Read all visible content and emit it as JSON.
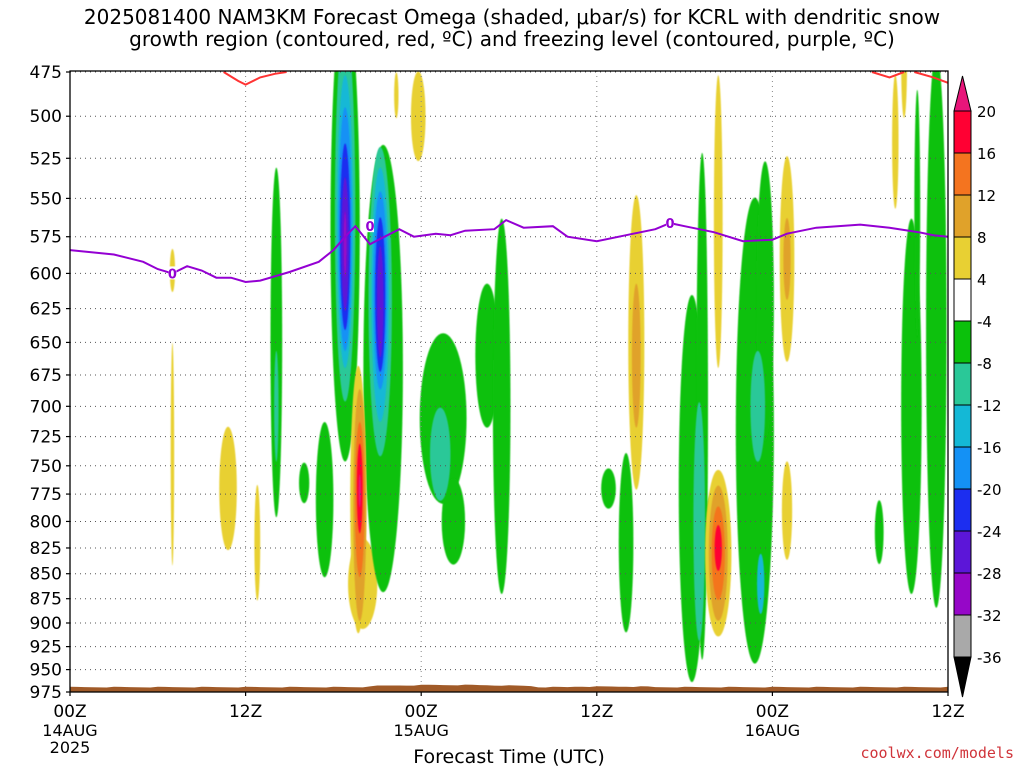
{
  "title_line1": "2025081400 NAM3KM Forecast Omega (shaded, μbar/s) for KCRL with dendritic snow",
  "title_line2": "growth region (contoured, red, ºC) and freezing level (contoured, purple, ºC)",
  "watermark": "coolwx.com/models",
  "chart_data": {
    "type": "heatmap",
    "xlabel": "Forecast Time (UTC)",
    "ylabel": "",
    "x_ticks": [
      {
        "h": 0,
        "label": "00Z",
        "sub": [
          "14AUG",
          "2025"
        ]
      },
      {
        "h": 12,
        "label": "12Z",
        "sub": []
      },
      {
        "h": 24,
        "label": "00Z",
        "sub": [
          "15AUG"
        ]
      },
      {
        "h": 36,
        "label": "12Z",
        "sub": []
      },
      {
        "h": 48,
        "label": "00Z",
        "sub": [
          "16AUG"
        ]
      },
      {
        "h": 60,
        "label": "12Z",
        "sub": []
      }
    ],
    "xlim": [
      0,
      60
    ],
    "y_ticks": [
      475,
      500,
      525,
      550,
      575,
      600,
      625,
      650,
      675,
      700,
      725,
      750,
      775,
      800,
      825,
      850,
      875,
      900,
      925,
      950,
      975
    ],
    "ylim": [
      475,
      975
    ],
    "y_scale": "log-pressure",
    "colorbar": {
      "labels": [
        "20",
        "16",
        "12",
        "8",
        "4",
        "-4",
        "-8",
        "-12",
        "-16",
        "-20",
        "-24",
        "-28",
        "-32",
        "-36"
      ],
      "colors": [
        "#ff0033",
        "#f4741f",
        "#e0a22a",
        "#e8d033",
        "#ffffff",
        "#0bc10b",
        "#2ac898",
        "#14b8d6",
        "#1491f5",
        "#1c2ef0",
        "#5c16d8",
        "#9607c8",
        "#a9a9a9",
        "#000000"
      ],
      "top_color": "#e8157a"
    },
    "freezing_level": {
      "label": "0",
      "color": "#9400d3",
      "points": [
        [
          0,
          584
        ],
        [
          3,
          587
        ],
        [
          5,
          592
        ],
        [
          6,
          597
        ],
        [
          7,
          600
        ],
        [
          8,
          595
        ],
        [
          9,
          598
        ],
        [
          10,
          603
        ],
        [
          11,
          603
        ],
        [
          12,
          606
        ],
        [
          13,
          605
        ],
        [
          15,
          599
        ],
        [
          17,
          592
        ],
        [
          18,
          584
        ],
        [
          19,
          573
        ],
        [
          19.5,
          568
        ],
        [
          20.5,
          580
        ],
        [
          21.5,
          575
        ],
        [
          22.5,
          570
        ],
        [
          23.5,
          575
        ],
        [
          25,
          573
        ],
        [
          26,
          574
        ],
        [
          27,
          571
        ],
        [
          29,
          570
        ],
        [
          29.8,
          564
        ],
        [
          31,
          569
        ],
        [
          33,
          568
        ],
        [
          34,
          575
        ],
        [
          36,
          578
        ],
        [
          38,
          574
        ],
        [
          40,
          570
        ],
        [
          41,
          566
        ],
        [
          42,
          568
        ],
        [
          44,
          572
        ],
        [
          46,
          578
        ],
        [
          48,
          577
        ],
        [
          49,
          573
        ],
        [
          51,
          569
        ],
        [
          54,
          567
        ],
        [
          56,
          569
        ],
        [
          58,
          572
        ],
        [
          59,
          574
        ],
        [
          60,
          575
        ]
      ],
      "labels_at": [
        [
          7,
          600
        ],
        [
          20.5,
          568
        ],
        [
          41,
          566
        ]
      ]
    },
    "dendritic_contour": {
      "color": "#ff3333",
      "segments": [
        [
          [
            10.5,
            475
          ],
          [
            11.5,
            480
          ],
          [
            12,
            482
          ],
          [
            13,
            478
          ],
          [
            14,
            476
          ],
          [
            14.8,
            475
          ]
        ],
        [
          [
            54.8,
            475
          ],
          [
            56,
            478
          ],
          [
            57,
            475
          ]
        ],
        [
          [
            57.7,
            475
          ],
          [
            59,
            478
          ],
          [
            60,
            481
          ]
        ]
      ]
    },
    "ground_fill": {
      "color": "#a05a28",
      "base_level": 975
    },
    "omega_regions": [
      {
        "value": 6,
        "h": 7.0,
        "p": 598,
        "rh": 0.18,
        "rp": 15
      },
      {
        "value": 6,
        "h": 7.0,
        "p": 740,
        "rh": 0.12,
        "rp": 95
      },
      {
        "value": 6,
        "h": 10.8,
        "p": 770,
        "rh": 0.6,
        "rp": 55
      },
      {
        "value": 6,
        "h": 12.8,
        "p": 820,
        "rh": 0.2,
        "rp": 55
      },
      {
        "value": 6,
        "h": 23.8,
        "p": 500,
        "rh": 0.5,
        "rp": 26
      },
      {
        "value": 6,
        "h": 22.3,
        "p": 488,
        "rh": 0.15,
        "rp": 13
      },
      {
        "value": 6,
        "h": 38.7,
        "p": 650,
        "rh": 0.55,
        "rp": 110
      },
      {
        "value": 6,
        "h": 44.3,
        "p": 565,
        "rh": 0.3,
        "rp": 95
      },
      {
        "value": 6,
        "h": 49.0,
        "p": 590,
        "rh": 0.5,
        "rp": 70
      },
      {
        "value": 6,
        "h": 49.0,
        "p": 790,
        "rh": 0.35,
        "rp": 45
      },
      {
        "value": 6,
        "h": 56.4,
        "p": 515,
        "rh": 0.22,
        "rp": 40
      },
      {
        "value": 6,
        "h": 57.0,
        "p": 470,
        "rh": 0.2,
        "rp": 30
      },
      {
        "value": 6,
        "h": 20.0,
        "p": 860,
        "rh": 1.0,
        "rp": 45
      },
      {
        "value": 10,
        "h": 38.7,
        "p": 660,
        "rh": 0.3,
        "rp": 55
      },
      {
        "value": 10,
        "h": 49.0,
        "p": 590,
        "rh": 0.25,
        "rp": 28
      },
      {
        "value": -6,
        "h": 14.1,
        "p": 650,
        "rh": 0.4,
        "rp": 130
      },
      {
        "value": -6,
        "h": 18.8,
        "p": 570,
        "rh": 1.0,
        "rp": 150
      },
      {
        "value": -6,
        "h": 21.4,
        "p": 670,
        "rh": 1.35,
        "rp": 170
      },
      {
        "value": -6,
        "h": 17.4,
        "p": 780,
        "rh": 0.6,
        "rp": 70
      },
      {
        "value": -6,
        "h": 16.0,
        "p": 765,
        "rh": 0.35,
        "rp": 18
      },
      {
        "value": -6,
        "h": 25.5,
        "p": 710,
        "rh": 1.6,
        "rp": 70
      },
      {
        "value": -6,
        "h": 28.5,
        "p": 660,
        "rh": 0.8,
        "rp": 55
      },
      {
        "value": -6,
        "h": 29.5,
        "p": 700,
        "rh": 0.6,
        "rp": 150
      },
      {
        "value": -6,
        "h": 26.2,
        "p": 800,
        "rh": 0.8,
        "rp": 40
      },
      {
        "value": -6,
        "h": 38.0,
        "p": 820,
        "rh": 0.5,
        "rp": 85
      },
      {
        "value": -6,
        "h": 36.8,
        "p": 770,
        "rh": 0.5,
        "rp": 18
      },
      {
        "value": -6,
        "h": 42.5,
        "p": 770,
        "rh": 0.9,
        "rp": 170
      },
      {
        "value": -6,
        "h": 43.2,
        "p": 700,
        "rh": 0.4,
        "rp": 200
      },
      {
        "value": -6,
        "h": 46.8,
        "p": 720,
        "rh": 1.3,
        "rp": 190
      },
      {
        "value": -6,
        "h": 47.5,
        "p": 620,
        "rh": 0.6,
        "rp": 100
      },
      {
        "value": -6,
        "h": 44.0,
        "p": 810,
        "rh": 0.6,
        "rp": 40
      },
      {
        "value": -6,
        "h": 57.5,
        "p": 700,
        "rh": 0.7,
        "rp": 150
      },
      {
        "value": -6,
        "h": 59.2,
        "p": 640,
        "rh": 0.7,
        "rp": 200
      },
      {
        "value": -6,
        "h": 55.3,
        "p": 810,
        "rh": 0.3,
        "rp": 30
      },
      {
        "value": -6,
        "h": 57.9,
        "p": 560,
        "rh": 0.2,
        "rp": 80
      },
      {
        "value": -10,
        "h": 25.3,
        "p": 740,
        "rh": 0.7,
        "rp": 40
      },
      {
        "value": -10,
        "h": 43.0,
        "p": 800,
        "rh": 0.4,
        "rp": 110
      },
      {
        "value": -10,
        "h": 47.0,
        "p": 700,
        "rh": 0.5,
        "rp": 45
      },
      {
        "value": -10,
        "h": 18.8,
        "p": 560,
        "rh": 0.7,
        "rp": 120
      },
      {
        "value": -10,
        "h": 21.2,
        "p": 620,
        "rh": 0.8,
        "rp": 110
      },
      {
        "value": -10,
        "h": 14.1,
        "p": 700,
        "rh": 0.15,
        "rp": 45
      },
      {
        "value": -14,
        "h": 18.8,
        "p": 565,
        "rh": 0.55,
        "rp": 95
      },
      {
        "value": -14,
        "h": 21.2,
        "p": 615,
        "rh": 0.6,
        "rp": 90
      },
      {
        "value": -14,
        "h": 47.2,
        "p": 860,
        "rh": 0.25,
        "rp": 30
      },
      {
        "value": -18,
        "h": 18.8,
        "p": 570,
        "rh": 0.45,
        "rp": 80
      },
      {
        "value": -18,
        "h": 21.2,
        "p": 612,
        "rh": 0.48,
        "rp": 70
      },
      {
        "value": -22,
        "h": 18.8,
        "p": 575,
        "rh": 0.35,
        "rp": 62
      },
      {
        "value": -22,
        "h": 21.2,
        "p": 615,
        "rh": 0.35,
        "rp": 55
      },
      {
        "value": -26,
        "h": 18.8,
        "p": 580,
        "rh": 0.25,
        "rp": 45
      },
      {
        "value": -26,
        "h": 21.2,
        "p": 620,
        "rh": 0.22,
        "rp": 40
      },
      {
        "value": -30,
        "h": 18.8,
        "p": 580,
        "rh": 0.1,
        "rp": 22
      },
      {
        "value": 6,
        "h": 19.7,
        "p": 780,
        "rh": 0.55,
        "rp": 120
      },
      {
        "value": 10,
        "h": 19.8,
        "p": 785,
        "rh": 0.45,
        "rp": 105
      },
      {
        "value": 14,
        "h": 19.8,
        "p": 780,
        "rh": 0.33,
        "rp": 70
      },
      {
        "value": 18,
        "h": 19.8,
        "p": 770,
        "rh": 0.2,
        "rp": 40
      },
      {
        "value": 22,
        "h": 19.8,
        "p": 772,
        "rh": 0.08,
        "rp": 15
      },
      {
        "value": 6,
        "h": 44.3,
        "p": 830,
        "rh": 0.9,
        "rp": 80
      },
      {
        "value": 10,
        "h": 44.3,
        "p": 830,
        "rh": 0.65,
        "rp": 65
      },
      {
        "value": 14,
        "h": 44.3,
        "p": 830,
        "rh": 0.45,
        "rp": 45
      },
      {
        "value": 18,
        "h": 44.3,
        "p": 825,
        "rh": 0.25,
        "rp": 22
      }
    ]
  }
}
